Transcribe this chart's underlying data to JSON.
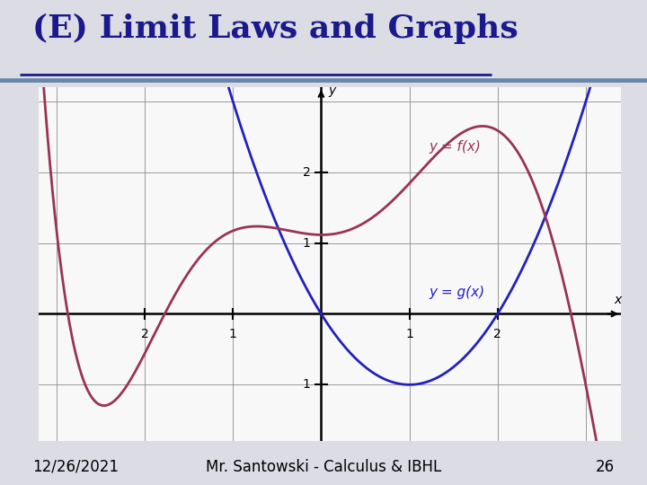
{
  "title": "(E) Limit Laws and Graphs",
  "date": "12/26/2021",
  "instructor": "Mr. Santowski - Calculus & IBHL",
  "page": "26",
  "xlim": [
    -3.2,
    3.4
  ],
  "ylim": [
    -1.8,
    3.2
  ],
  "xticks": [
    -2,
    -1,
    1,
    2
  ],
  "yticks": [
    -1,
    1,
    2
  ],
  "blue_color": "#2222bb",
  "red_color": "#993355",
  "bg_color": "#dcdce4",
  "plot_bg": "#f8f8f8",
  "title_color": "#1a1a8c",
  "title_fontsize": 26,
  "footer_fontsize": 12,
  "grid_color": "#999999",
  "f_keypoints_x": [
    -2.5,
    -2.0,
    -1.5,
    -1.0,
    -0.5,
    0.0,
    0.5,
    1.0,
    1.8,
    2.5,
    3.0
  ],
  "f_keypoints_y": [
    -1.3,
    -0.5,
    0.5,
    1.2,
    1.25,
    1.1,
    1.3,
    1.8,
    2.7,
    1.5,
    -1.0
  ]
}
